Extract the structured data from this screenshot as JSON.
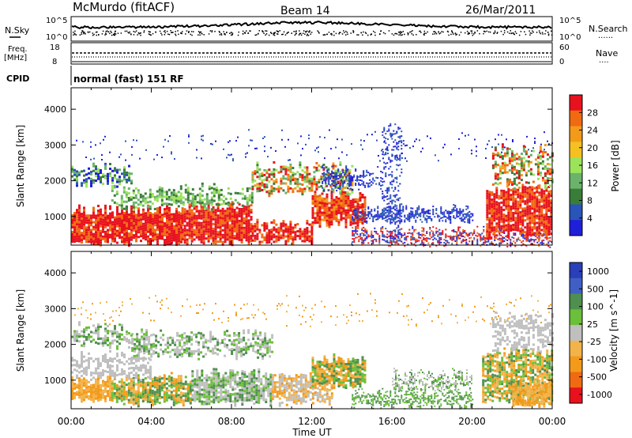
{
  "header": {
    "station": "McMurdo (fitACF)",
    "beam": "Beam 14",
    "date": "26/Mar/2011"
  },
  "noise_panel": {
    "left_label": "N.Sky",
    "left_ticks": [
      "10^5",
      "10^0"
    ],
    "right_label": "N.Search",
    "right_ticks": [
      "10^5",
      "10^0"
    ],
    "right_marker": "......"
  },
  "freq_panel": {
    "left_label_line1": "Freq.",
    "left_label_line2": "[MHz]",
    "left_ticks": [
      "18",
      "8"
    ],
    "right_label": "Nave",
    "right_ticks": [
      "60",
      "0"
    ],
    "right_marker": "...."
  },
  "cpid_panel": {
    "label": "CPID",
    "text": "normal (fast) 151 RF"
  },
  "x_axis": {
    "label": "Time UT",
    "ticks": [
      "00:00",
      "04:00",
      "08:00",
      "12:00",
      "16:00",
      "20:00",
      "00:00"
    ]
  },
  "colors": {
    "white": "#ffffff",
    "black": "#000000",
    "power": [
      "#1f1fd9",
      "#2a55b8",
      "#3a7d3a",
      "#6bb36b",
      "#9be35a",
      "#f5c021",
      "#f39a1a",
      "#f06a12",
      "#e8121e"
    ],
    "velocity": [
      "#2a3fb8",
      "#3f5fc5",
      "#4f8f4f",
      "#6bbf3a",
      "#bfbfbf",
      "#f2b34a",
      "#f39a1a",
      "#f06a12",
      "#e8121e"
    ]
  },
  "chart_data": [
    {
      "type": "heatmap",
      "name": "power",
      "ylabel": "Slant Range [km]",
      "xlabel": "",
      "y_ticks": [
        1000,
        2000,
        3000,
        4000
      ],
      "ylim": [
        200,
        4600
      ],
      "x_range_hours": [
        0,
        24
      ],
      "colorbar": {
        "label": "Power [dB]",
        "ticks": [
          "4",
          "8",
          "12",
          "16",
          "20",
          "24",
          "28"
        ],
        "range": [
          0,
          32
        ]
      }
    },
    {
      "type": "heatmap",
      "name": "velocity",
      "ylabel": "Slant Range [km]",
      "xlabel": "Time UT",
      "y_ticks": [
        1000,
        2000,
        3000,
        4000
      ],
      "ylim": [
        200,
        4600
      ],
      "x_range_hours": [
        0,
        24
      ],
      "colorbar": {
        "label": "Velocity [m s^-1]",
        "ticks": [
          "1000",
          "500",
          "100",
          "25",
          "-25",
          "-100",
          "-500",
          "-1000"
        ]
      }
    }
  ]
}
